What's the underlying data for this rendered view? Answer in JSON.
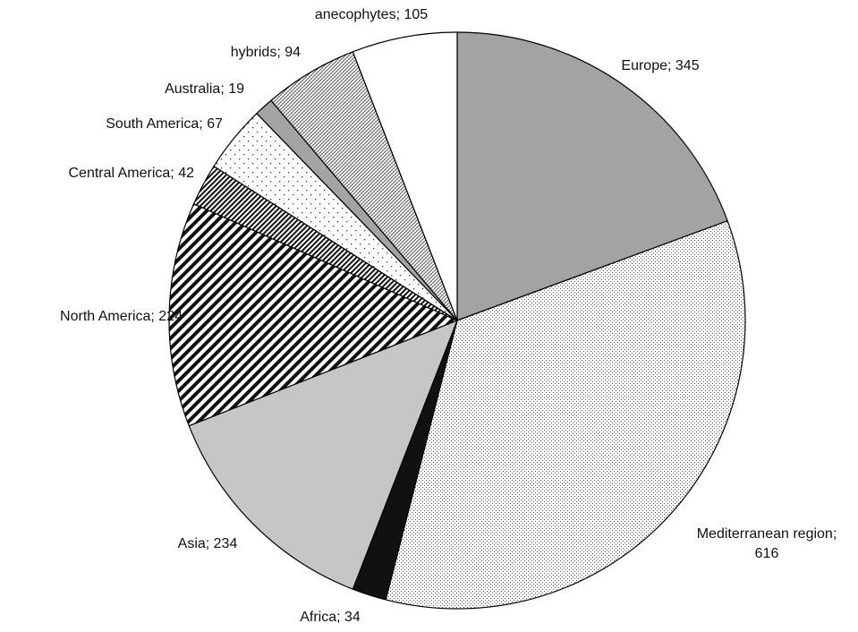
{
  "chart_data": {
    "type": "pie",
    "title": "",
    "slices": [
      {
        "label": "Europe; 345",
        "value": 345,
        "fill": "solid",
        "color": "#a3a3a3"
      },
      {
        "label": "Mediterranean region; 616",
        "value": 616,
        "fill": "fine-dots",
        "color": "#ffffff"
      },
      {
        "label": "Africa; 34",
        "value": 34,
        "fill": "solid",
        "color": "#111111"
      },
      {
        "label": "Asia; 234",
        "value": 234,
        "fill": "solid",
        "color": "#c6c6c6"
      },
      {
        "label": "North America; 224",
        "value": 224,
        "fill": "wide-diagonal-stripes",
        "color": "#ffffff"
      },
      {
        "label": "Central America; 42",
        "value": 42,
        "fill": "dense-diagonal-hatch",
        "color": "#ffffff"
      },
      {
        "label": "South America; 67",
        "value": 67,
        "fill": "sparse-dots",
        "color": "#ffffff"
      },
      {
        "label": "Australia; 19",
        "value": 19,
        "fill": "solid",
        "color": "#a3a3a3"
      },
      {
        "label": "hybrids; 94",
        "value": 94,
        "fill": "crosshatch",
        "color": "#ffffff"
      },
      {
        "label": "anecophytes; 105",
        "value": 105,
        "fill": "solid",
        "color": "#ffffff"
      }
    ],
    "start_angle": "12 o'clock",
    "direction": "clockwise",
    "legend": "none",
    "stroke_color": "#000000"
  }
}
